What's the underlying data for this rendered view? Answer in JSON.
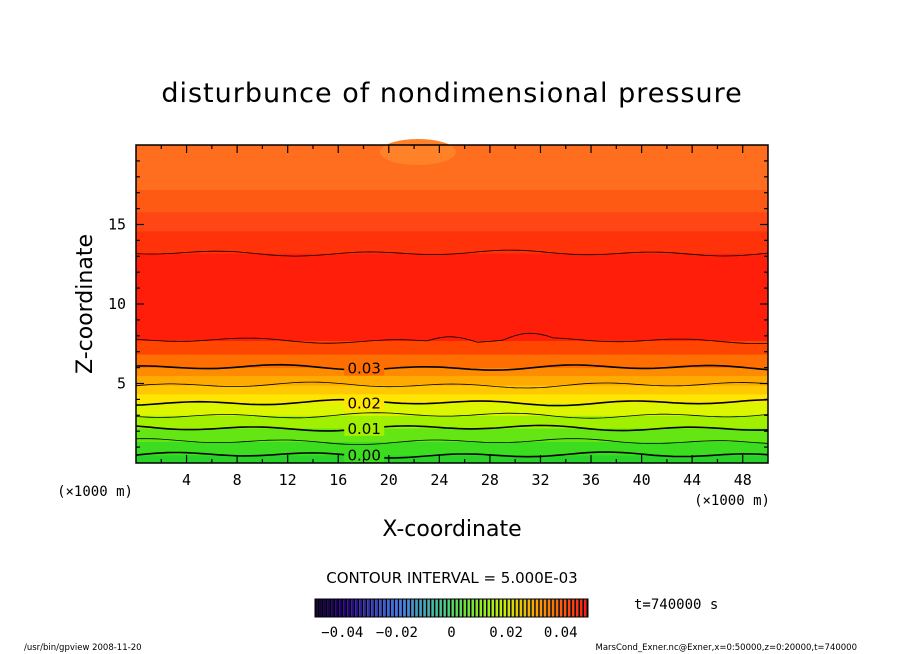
{
  "chart_data": {
    "type": "heatmap",
    "title": "disturbunce of nondimensional pressure",
    "xlabel": "X-coordinate",
    "ylabel": "Z-coordinate",
    "x_unit": "(×1000 m)",
    "z_unit": "(×1000 m)",
    "xlim": [
      0,
      50
    ],
    "ylim": [
      0,
      20
    ],
    "x_ticks": [
      4,
      8,
      12,
      16,
      20,
      24,
      28,
      32,
      36,
      40,
      44,
      48
    ],
    "y_ticks": [
      5,
      10,
      15
    ],
    "contour_labels": [
      {
        "value": "0.03",
        "x": 17.5,
        "z": 6.0
      },
      {
        "value": "0.02",
        "x": 17.5,
        "z": 3.8
      },
      {
        "value": "0.01",
        "x": 17.5,
        "z": 2.2
      },
      {
        "value": "0.00",
        "x": 17.5,
        "z": 0.55
      }
    ],
    "contour_levels_z": [
      0.5,
      1.35,
      2.2,
      3.0,
      3.8,
      4.9,
      6.0,
      7.7,
      13.2
    ],
    "contour_interval": "CONTOUR INTERVAL = 5.000E-03",
    "colorbar": {
      "min": -0.05,
      "max": 0.05,
      "tick_labels": [
        "−0.04",
        "−0.02",
        "0",
        "0.02",
        "0.04"
      ],
      "tick_values": [
        -0.04,
        -0.02,
        0,
        0.02,
        0.04
      ]
    },
    "time_label": "t=740000  s",
    "color_bands": [
      {
        "z0": 0.0,
        "z1": 0.5,
        "color": "#28d228"
      },
      {
        "z0": 0.5,
        "z1": 1.35,
        "color": "#3cdc1e"
      },
      {
        "z0": 1.35,
        "z1": 2.2,
        "color": "#64e614"
      },
      {
        "z0": 2.2,
        "z1": 3.0,
        "color": "#a0f000"
      },
      {
        "z0": 3.0,
        "z1": 3.8,
        "color": "#dcf500"
      },
      {
        "z0": 3.8,
        "z1": 4.35,
        "color": "#ffe600"
      },
      {
        "z0": 4.35,
        "z1": 4.9,
        "color": "#ffc800"
      },
      {
        "z0": 4.9,
        "z1": 5.5,
        "color": "#ffaa00"
      },
      {
        "z0": 5.5,
        "z1": 6.0,
        "color": "#ff8c00"
      },
      {
        "z0": 6.0,
        "z1": 6.85,
        "color": "#ff6e00"
      },
      {
        "z0": 6.85,
        "z1": 7.7,
        "color": "#ff4600"
      },
      {
        "z0": 7.7,
        "z1": 13.2,
        "color": "#ff1e0a"
      },
      {
        "z0": 13.2,
        "z1": 14.6,
        "color": "#ff320a"
      },
      {
        "z0": 14.6,
        "z1": 15.8,
        "color": "#ff4614"
      },
      {
        "z0": 15.8,
        "z1": 17.2,
        "color": "#ff5a14"
      },
      {
        "z0": 17.2,
        "z1": 20.0,
        "color": "#ff6e1e"
      }
    ]
  },
  "footer": {
    "left": "/usr/bin/gpview  2008-11-20",
    "right": "MarsCond_Exner.nc@Exner,x=0:50000,z=0:20000,t=740000"
  }
}
